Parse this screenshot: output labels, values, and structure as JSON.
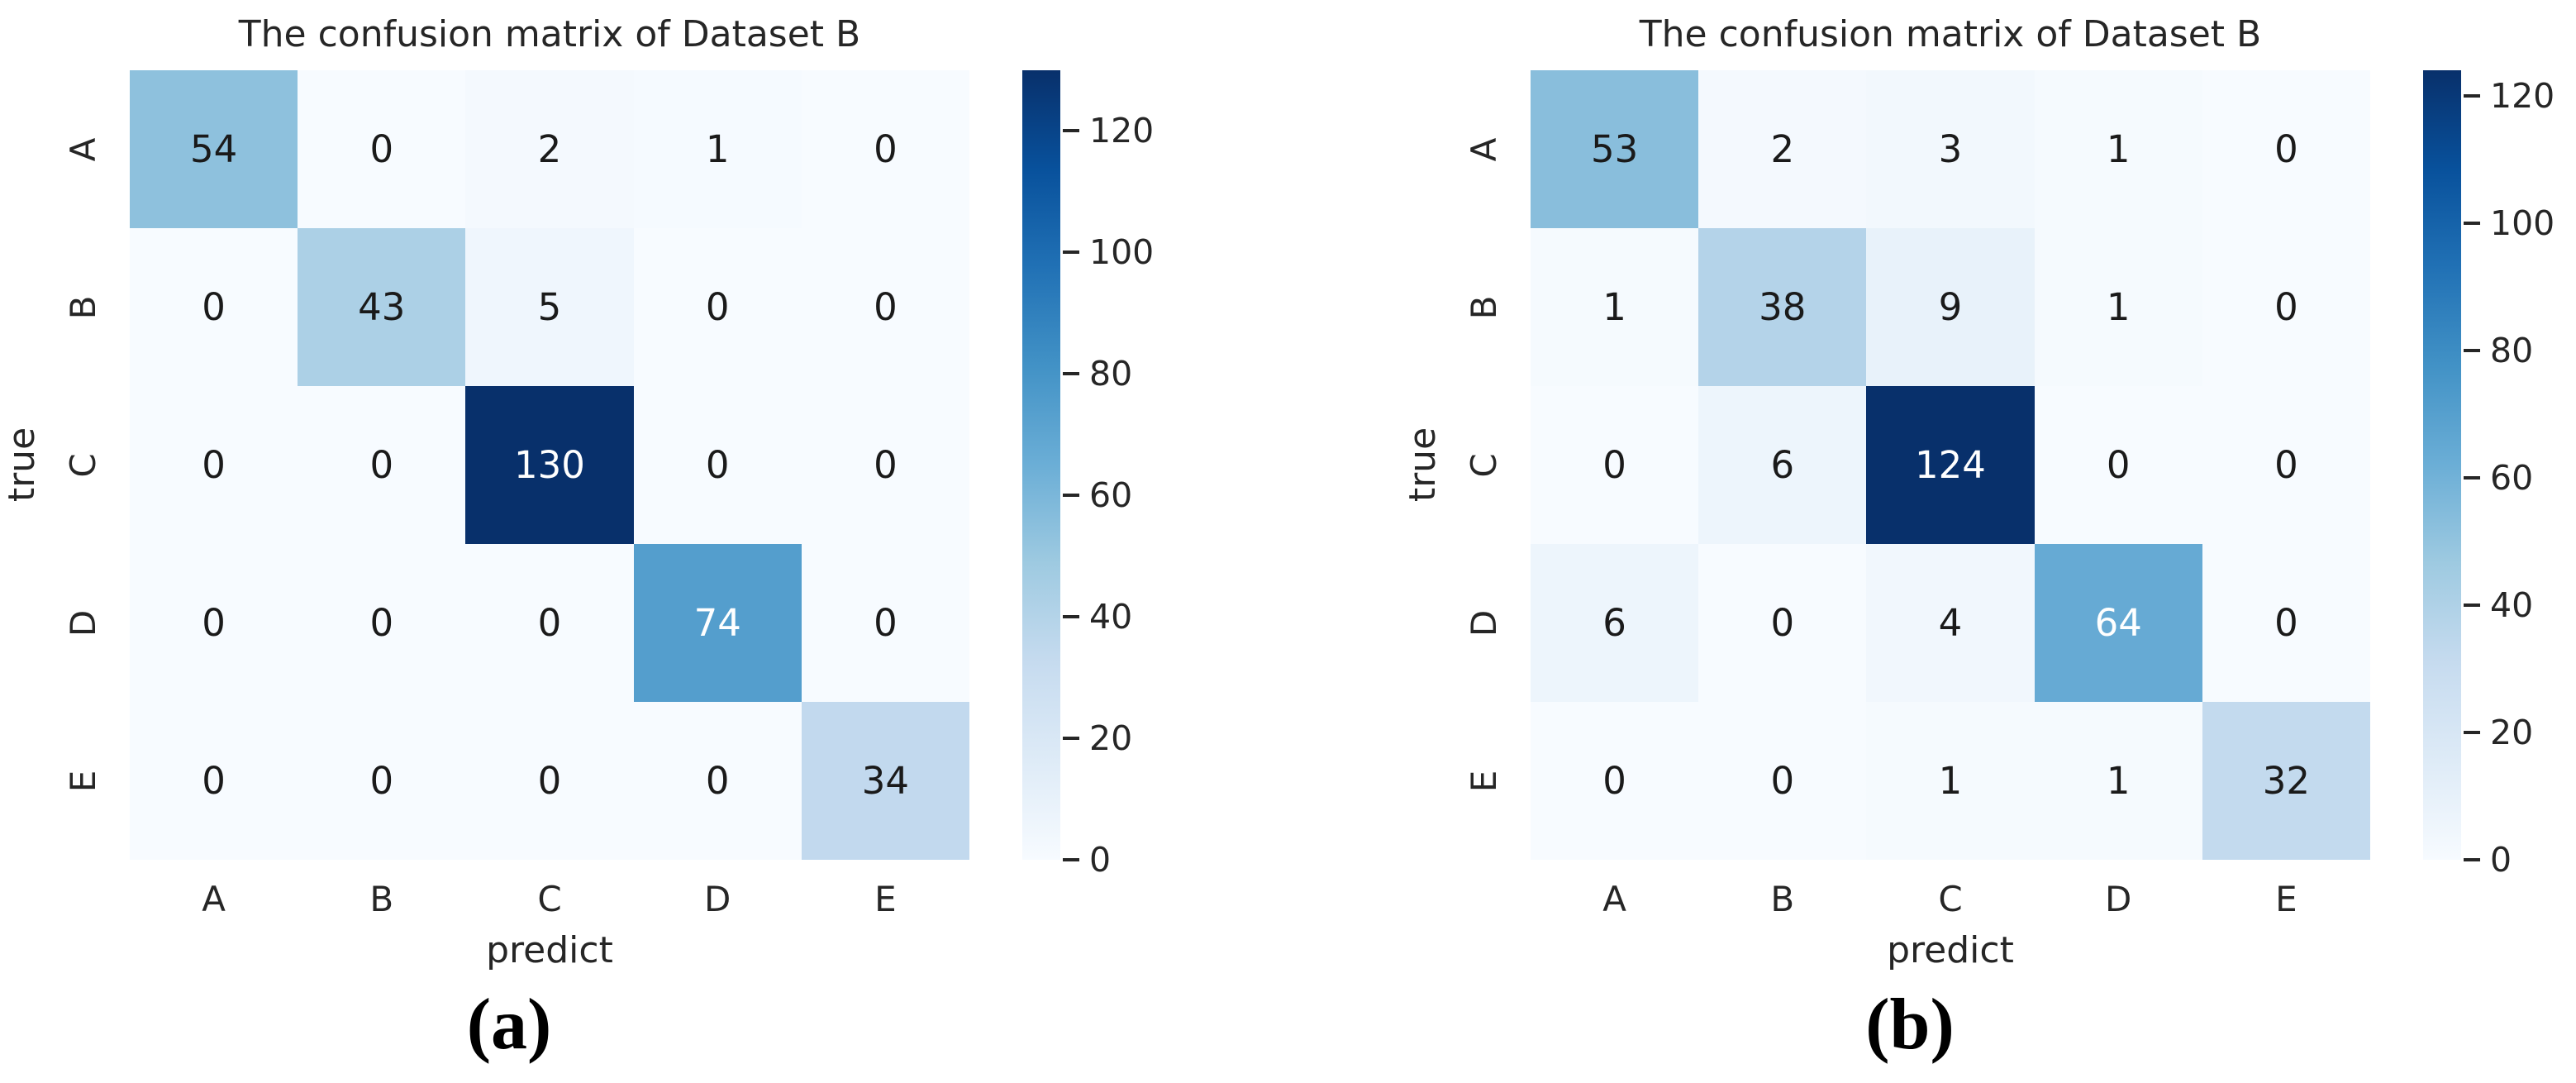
{
  "chart_data": [
    {
      "type": "heatmap",
      "title": "The confusion matrix of Dataset B",
      "xlabel": "predict",
      "ylabel": "true",
      "caption": "(a)",
      "row_labels": [
        "A",
        "B",
        "C",
        "D",
        "E"
      ],
      "col_labels": [
        "A",
        "B",
        "C",
        "D",
        "E"
      ],
      "matrix": [
        [
          54,
          0,
          2,
          1,
          0
        ],
        [
          0,
          43,
          5,
          0,
          0
        ],
        [
          0,
          0,
          130,
          0,
          0
        ],
        [
          0,
          0,
          0,
          74,
          0
        ],
        [
          0,
          0,
          0,
          0,
          34
        ]
      ],
      "vmin": 0,
      "vmax": 130,
      "colorbar_ticks": [
        0,
        20,
        40,
        60,
        80,
        100,
        120
      ],
      "colormap": "Blues",
      "legend_position": "right-colorbar",
      "grid": false
    },
    {
      "type": "heatmap",
      "title": "The confusion matrix of Dataset B",
      "xlabel": "predict",
      "ylabel": "true",
      "caption": "(b)",
      "row_labels": [
        "A",
        "B",
        "C",
        "D",
        "E"
      ],
      "col_labels": [
        "A",
        "B",
        "C",
        "D",
        "E"
      ],
      "matrix": [
        [
          53,
          2,
          3,
          1,
          0
        ],
        [
          1,
          38,
          9,
          1,
          0
        ],
        [
          0,
          6,
          124,
          0,
          0
        ],
        [
          6,
          0,
          4,
          64,
          0
        ],
        [
          0,
          0,
          1,
          1,
          32
        ]
      ],
      "vmin": 0,
      "vmax": 124,
      "colorbar_ticks": [
        0,
        20,
        40,
        60,
        80,
        100,
        120
      ],
      "colormap": "Blues",
      "legend_position": "right-colorbar",
      "grid": false
    }
  ],
  "colors": {
    "background": "#ffffff",
    "text": "#262626",
    "annotation_dark": "#1a1a1a",
    "annotation_light": "#ffffff",
    "colormap_stops": [
      "#f7fbff",
      "#deebf7",
      "#c6dbef",
      "#9ecae1",
      "#6baed6",
      "#4292c6",
      "#2171b5",
      "#08519c",
      "#08306b"
    ]
  }
}
